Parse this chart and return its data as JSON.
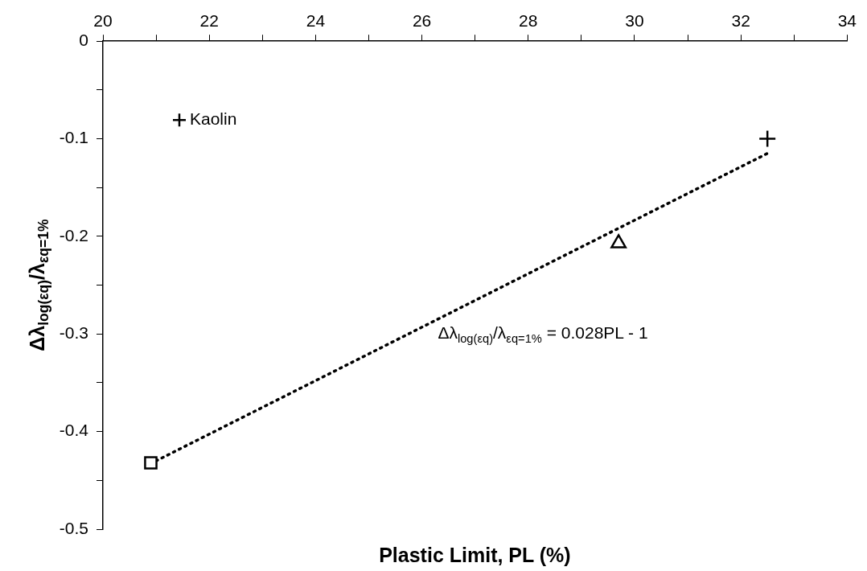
{
  "chart_data": {
    "type": "scatter",
    "xlabel": "Plastic Limit, PL (%)",
    "ylabel": "Δλ$_{log(εq)}$/λ$_{εq=1%}$",
    "xlim": [
      20,
      34
    ],
    "xticks": [
      20,
      {
        "value": 21,
        "label": null
      },
      22,
      {
        "value": 23,
        "label": null
      },
      24,
      {
        "value": 25,
        "label": null
      },
      26,
      {
        "value": 27,
        "label": null
      },
      28,
      {
        "value": 29,
        "label": null
      },
      30,
      {
        "value": 31,
        "label": null
      },
      32,
      {
        "value": 33,
        "label": null
      },
      34
    ],
    "ylim": [
      -0.5,
      0
    ],
    "yticks": [
      -0.5,
      {
        "value": -0.45,
        "label": null
      },
      -0.4,
      {
        "value": -0.35,
        "label": null
      },
      -0.3,
      {
        "value": -0.25,
        "label": null
      },
      -0.2,
      {
        "value": -0.15,
        "label": null
      },
      -0.1,
      {
        "value": -0.05,
        "label": null
      },
      0
    ],
    "grid": false,
    "legend": "top left",
    "series": [
      {
        "name": "Kaolin",
        "type": "scatter",
        "marker": "cross",
        "color": "#000000",
        "x": [
          32.5
        ],
        "values": [
          -0.1
        ]
      },
      {
        "type": "scatter",
        "marker": "square",
        "color": "#000000",
        "x": [
          20.9
        ],
        "values": [
          -0.432
        ]
      },
      {
        "type": "scatter",
        "marker": "triangle",
        "color": "#000000",
        "x": [
          29.7
        ],
        "values": [
          -0.207
        ]
      },
      {
        "type": "line",
        "marker": "none",
        "line_style": "dotted",
        "color": "#000000",
        "x": [
          21.0,
          32.5
        ],
        "values": [
          -0.43,
          -0.115
        ]
      }
    ],
    "annotations": [
      "Δλ$_{log(εq)}$/λ$_{εq=1%}$ = 0.028PL - 1"
    ]
  }
}
